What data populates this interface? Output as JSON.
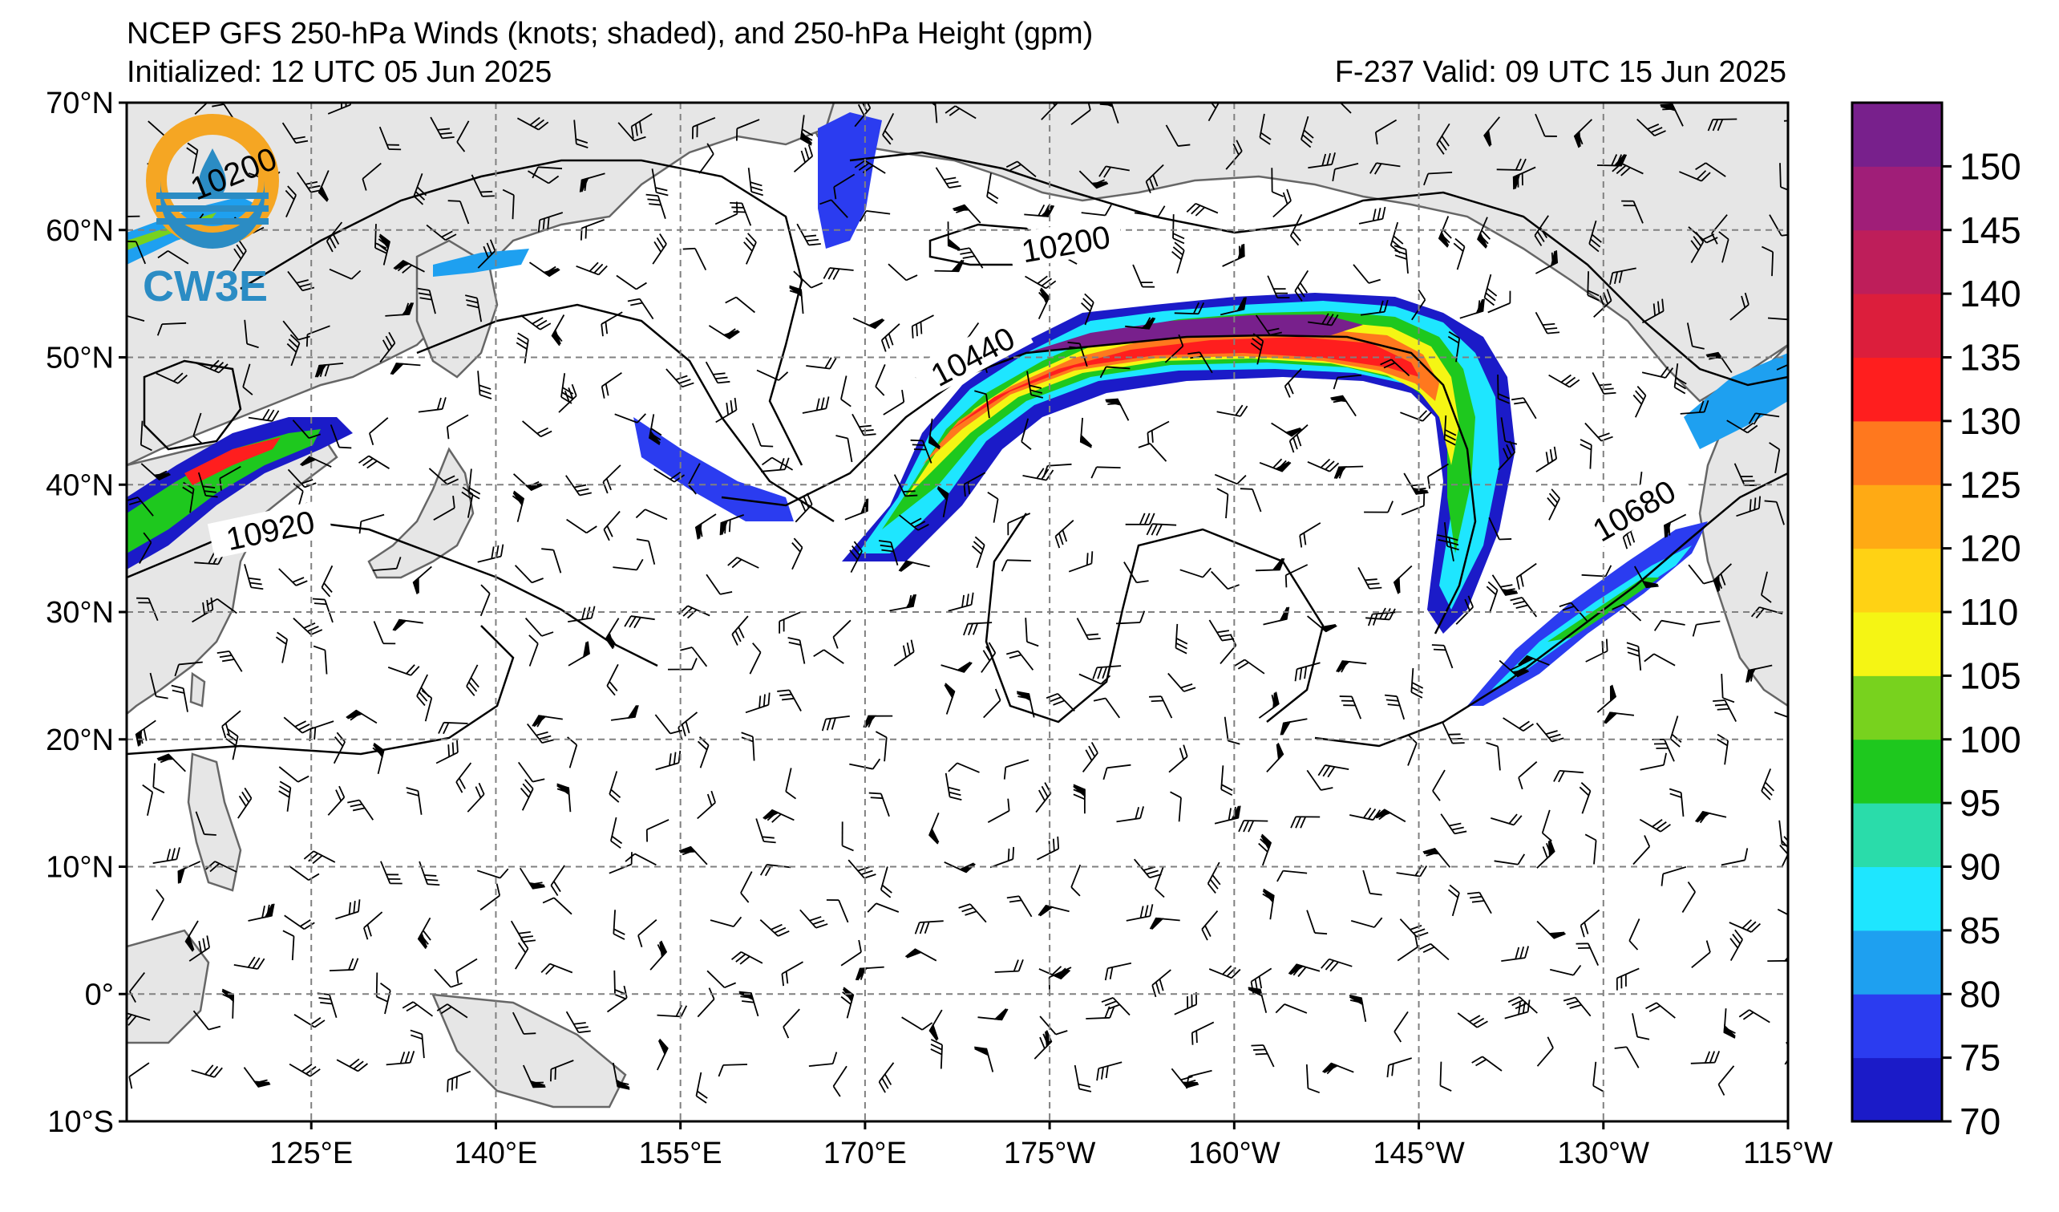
{
  "header": {
    "title": "NCEP GFS 250-hPa Winds (knots; shaded), and 250-hPa Height (gpm)",
    "initialized": "Initialized: 12 UTC 05 Jun 2025",
    "valid": "F-237  Valid: 09 UTC 15 Jun 2025"
  },
  "logo": {
    "text": "CW3E",
    "ring_label": "10200",
    "icon": "cw3e-logo-icon"
  },
  "map": {
    "lat_labels": [
      "70°N",
      "60°N",
      "50°N",
      "40°N",
      "30°N",
      "20°N",
      "10°N",
      "0°",
      "10°S"
    ],
    "lon_labels": [
      "125°E",
      "140°E",
      "155°E",
      "170°E",
      "175°W",
      "160°W",
      "145°W",
      "130°W",
      "115°W"
    ],
    "contour_labels": {
      "c10200": "10200",
      "c10440": "10440",
      "c10920": "10920",
      "c10680": "10680"
    },
    "land_color": "#e6e6e6",
    "coast_color": "#666666",
    "grid_color": "#808080"
  },
  "colorbar": {
    "labels": [
      "70",
      "75",
      "80",
      "85",
      "90",
      "95",
      "100",
      "105",
      "110",
      "120",
      "125",
      "130",
      "135",
      "140",
      "145",
      "150"
    ],
    "colors": [
      "#1b1bc8",
      "#2b3cf0",
      "#1ea0f0",
      "#1ee6ff",
      "#2adcaa",
      "#1ec81e",
      "#78d21e",
      "#f5f514",
      "#ffd214",
      "#ffaa14",
      "#ff781e",
      "#ff1e1e",
      "#dc1e3c",
      "#be1e5a",
      "#a01e78",
      "#78208c"
    ]
  }
}
